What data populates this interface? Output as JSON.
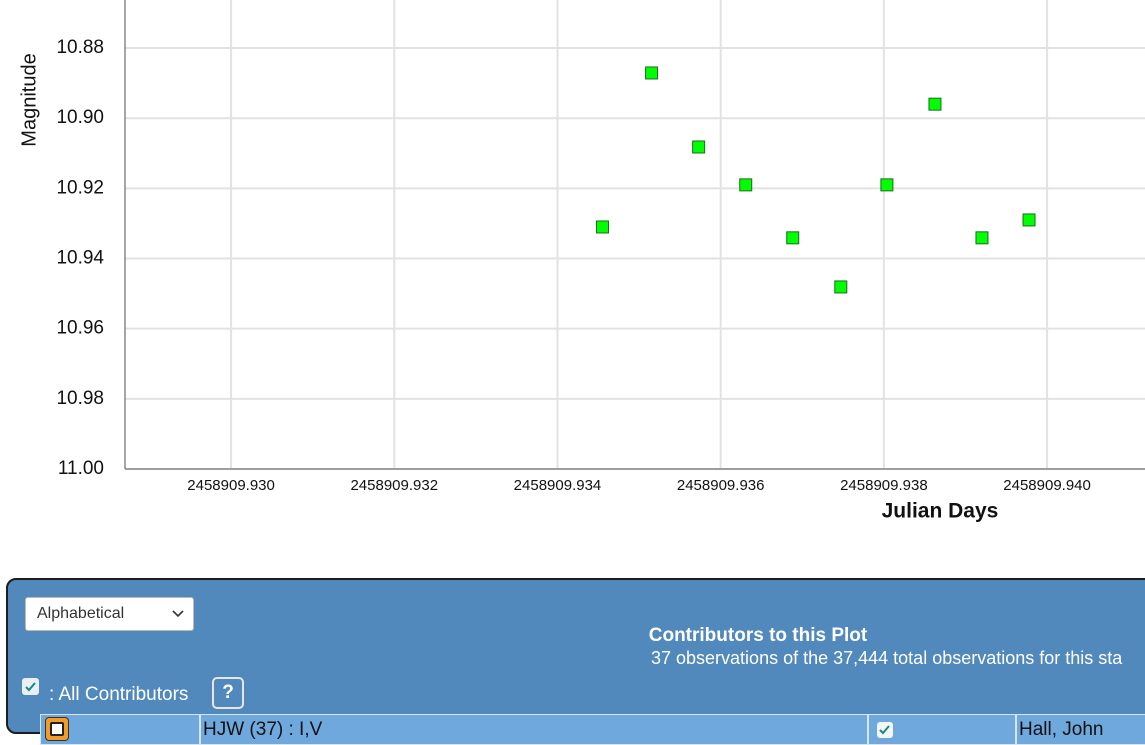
{
  "chart_data": {
    "type": "scatter",
    "x_label": "Julian Days",
    "y_label": "Magnitude",
    "x": [
      2458909.934552,
      2458909.935153,
      2458909.93573,
      2458909.936307,
      2458909.936883,
      2458909.937472,
      2458909.938037,
      2458909.938626,
      2458909.939202,
      2458909.939779
    ],
    "values": [
      10.931,
      10.8871,
      10.9082,
      10.919,
      10.9341,
      10.9481,
      10.919,
      10.896,
      10.9341,
      10.929
    ],
    "color": "#00ff00",
    "xlim": [
      2458909.9287,
      2458909.9412
    ],
    "xticks": [
      {
        "value": 2458909.93,
        "label": "2458909.930"
      },
      2458909.932,
      2458909.934,
      2458909.936,
      2458909.938,
      {
        "value": 2458909.94,
        "label": "2458909.940"
      }
    ],
    "ylim": [
      10.8663,
      11.0
    ],
    "y_inverted": true,
    "yticks": [
      10.88,
      {
        "value": 10.9,
        "label": "10.90"
      },
      10.92,
      10.94,
      10.96,
      10.98,
      {
        "value": 11.0,
        "label": "11.00"
      }
    ],
    "grid": true
  },
  "panel": {
    "sort": "Alphabetical",
    "all_label": ": All Contributors",
    "help": "?",
    "title": "Contributors to this Plot",
    "subtitle": "37 observations of the 37,444 total observations for this sta"
  },
  "table": {
    "rows": [
      [
        "HJW (37) : I,V",
        "Hall, John"
      ]
    ]
  }
}
